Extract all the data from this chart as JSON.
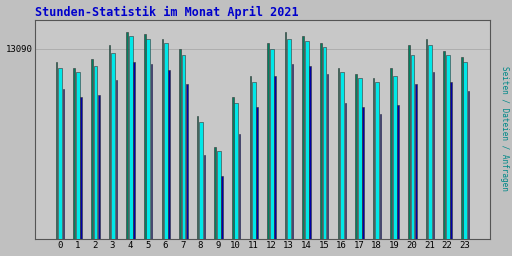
{
  "title": "Stunden-Statistik im Monat April 2021",
  "ylabel": "Seiten / Dateien / Anfragen",
  "xlabel_ticks": [
    "0",
    "1",
    "2",
    "3",
    "4",
    "5",
    "6",
    "7",
    "8",
    "9",
    "10",
    "11",
    "12",
    "13",
    "14",
    "15",
    "16",
    "17",
    "18",
    "19",
    "20",
    "21",
    "22",
    "23"
  ],
  "ytick_label": "13090",
  "background_color": "#c0c0c0",
  "plot_bg_color": "#c8c8c8",
  "title_color": "#0000cc",
  "ylabel_color": "#008888",
  "bar_cyan": "#00e8e8",
  "bar_blue": "#0000aa",
  "bar_green": "#008060",
  "bar_edge_color": "#333333",
  "grid_color": "#aaaaaa",
  "cyan": [
    82,
    80,
    83,
    89,
    97,
    96,
    94,
    88,
    56,
    42,
    65,
    75,
    91,
    96,
    95,
    92,
    80,
    77,
    75,
    78,
    88,
    93,
    88,
    85
  ],
  "blue": [
    72,
    68,
    69,
    76,
    85,
    84,
    81,
    74,
    40,
    30,
    50,
    63,
    78,
    84,
    83,
    79,
    65,
    63,
    60,
    64,
    74,
    80,
    75,
    71
  ],
  "green": [
    85,
    82,
    86,
    93,
    99,
    98,
    96,
    91,
    59,
    44,
    68,
    78,
    94,
    99,
    97,
    94,
    82,
    79,
    77,
    82,
    93,
    96,
    90,
    87
  ],
  "ylim_max": 105,
  "ytick_pos": 91,
  "figsize": [
    5.12,
    2.56
  ],
  "dpi": 100
}
